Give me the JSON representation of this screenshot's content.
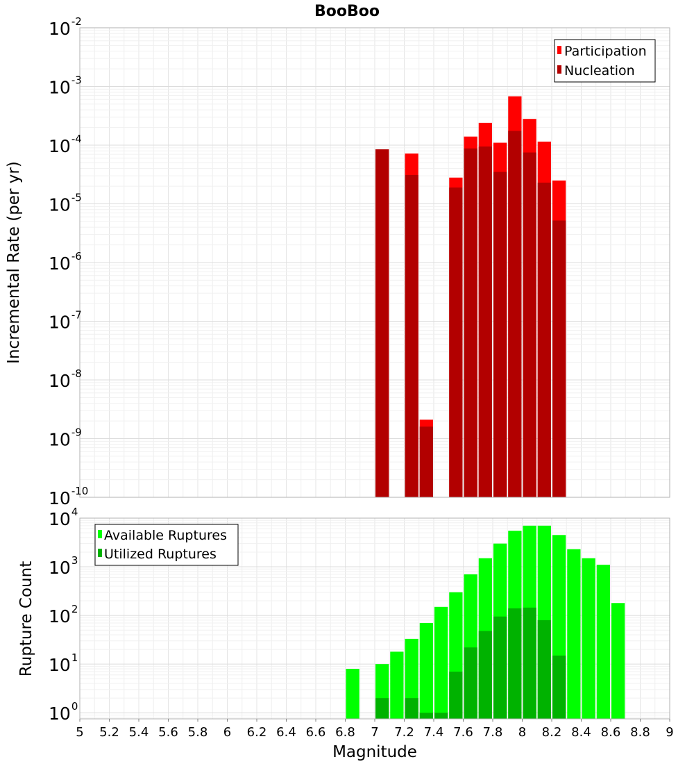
{
  "chart_data": [
    {
      "id": "rate",
      "type": "bar",
      "title": "BooBoo",
      "ylabel": "Incremental Rate (per yr)",
      "xlabel": "",
      "yscale": "log",
      "ylim": [
        1e-10,
        0.01
      ],
      "xlim": [
        5,
        9
      ],
      "bar_width": 0.1,
      "grid": true,
      "legend_position": "top-right",
      "y_ticks": [
        {
          "base": "10",
          "exp": "-10",
          "value": 1e-10
        },
        {
          "base": "10",
          "exp": "-9",
          "value": 1e-09
        },
        {
          "base": "10",
          "exp": "-8",
          "value": 1e-08
        },
        {
          "base": "10",
          "exp": "-7",
          "value": 1e-07
        },
        {
          "base": "10",
          "exp": "-6",
          "value": 1e-06
        },
        {
          "base": "10",
          "exp": "-5",
          "value": 1e-05
        },
        {
          "base": "10",
          "exp": "-4",
          "value": 0.0001
        },
        {
          "base": "10",
          "exp": "-3",
          "value": 0.001
        },
        {
          "base": "10",
          "exp": "-2",
          "value": 0.01
        }
      ],
      "series": [
        {
          "name": "Participation",
          "color": "#ff0000",
          "x": [
            7.05,
            7.25,
            7.35,
            7.55,
            7.65,
            7.75,
            7.85,
            7.95,
            8.05,
            8.15,
            8.25
          ],
          "values": [
            8.5e-05,
            7.2e-05,
            2.1e-09,
            2.8e-05,
            0.00014,
            0.00024,
            0.00011,
            0.00068,
            0.00028,
            0.000115,
            2.5e-05
          ]
        },
        {
          "name": "Nucleation",
          "color": "#b20000",
          "x": [
            7.05,
            7.25,
            7.35,
            7.55,
            7.65,
            7.75,
            7.85,
            7.95,
            8.05,
            8.15,
            8.25
          ],
          "values": [
            8.5e-05,
            3.1e-05,
            1.6e-09,
            1.9e-05,
            8.8e-05,
            9.5e-05,
            3.5e-05,
            0.000175,
            7.5e-05,
            2.3e-05,
            5.2e-06
          ]
        }
      ]
    },
    {
      "id": "count",
      "type": "bar",
      "title": "",
      "ylabel": "Rupture Count",
      "xlabel": "Magnitude",
      "yscale": "log",
      "ylim": [
        0.75,
        10000
      ],
      "xlim": [
        5,
        9
      ],
      "bar_width": 0.1,
      "grid": true,
      "legend_position": "top-left",
      "x_ticks": [
        "5",
        "5.2",
        "5.4",
        "5.6",
        "5.8",
        "6",
        "6.2",
        "6.4",
        "6.6",
        "6.8",
        "7",
        "7.2",
        "7.4",
        "7.6",
        "7.8",
        "8",
        "8.2",
        "8.4",
        "8.6",
        "8.8",
        "9"
      ],
      "y_ticks": [
        {
          "base": "10",
          "exp": "0",
          "value": 1
        },
        {
          "base": "10",
          "exp": "1",
          "value": 10
        },
        {
          "base": "10",
          "exp": "2",
          "value": 100
        },
        {
          "base": "10",
          "exp": "3",
          "value": 1000
        },
        {
          "base": "10",
          "exp": "4",
          "value": 10000
        }
      ],
      "series": [
        {
          "name": "Available Ruptures",
          "color": "#00ff00",
          "x": [
            6.85,
            7.05,
            7.15,
            7.25,
            7.35,
            7.45,
            7.55,
            7.65,
            7.75,
            7.85,
            7.95,
            8.05,
            8.15,
            8.25,
            8.35,
            8.45,
            8.55,
            8.65
          ],
          "values": [
            8,
            10,
            18,
            33,
            70,
            150,
            300,
            700,
            1500,
            3000,
            5500,
            7000,
            7000,
            4500,
            2300,
            1500,
            1100,
            180
          ]
        },
        {
          "name": "Utilized Ruptures",
          "color": "#00b200",
          "x": [
            7.05,
            7.25,
            7.35,
            7.45,
            7.55,
            7.65,
            7.75,
            7.85,
            7.95,
            8.05,
            8.15,
            8.25
          ],
          "values": [
            2,
            2,
            1,
            1,
            7,
            22,
            48,
            95,
            140,
            145,
            80,
            15
          ]
        }
      ]
    }
  ]
}
